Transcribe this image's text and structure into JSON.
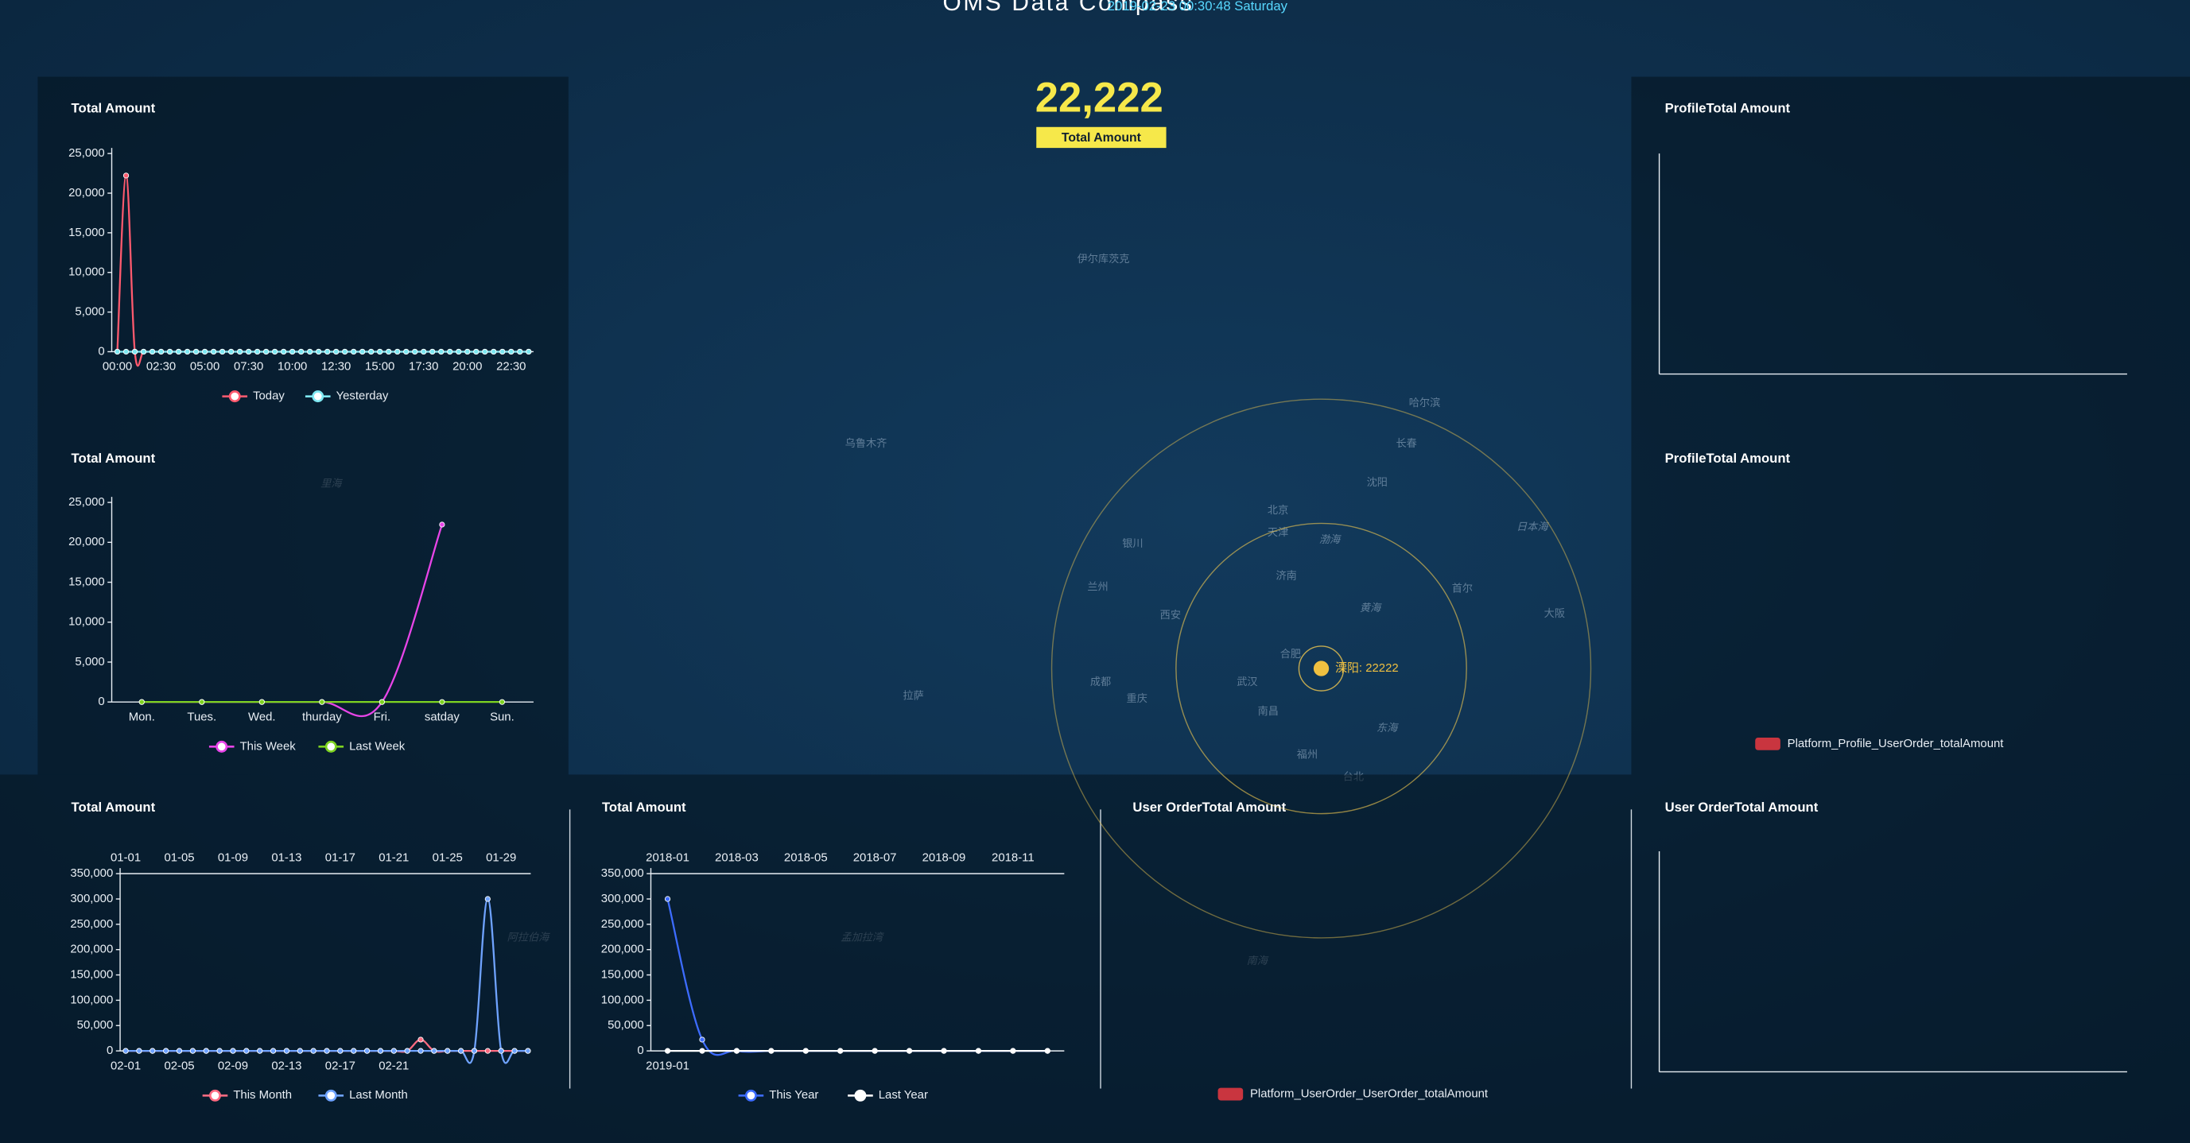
{
  "header": {
    "title": "OMS Data Compass",
    "datetime": "2019-02-23 00:30:48 Saturday"
  },
  "kpi": {
    "value": "22,222",
    "label": "Total Amount"
  },
  "map": {
    "point_label": "溧阳: 22222",
    "labels": [
      "北京",
      "渤海",
      "黄海",
      "东海",
      "日本海",
      "南海",
      "孟加拉湾",
      "阿拉伯海",
      "里海",
      "乌鲁木齐",
      "伊尔库茨克",
      "哈尔滨",
      "长春",
      "沈阳",
      "天津",
      "济南",
      "西安",
      "武汉",
      "成都",
      "重庆",
      "南昌",
      "福州",
      "台北",
      "首尔",
      "大阪",
      "拉萨",
      "兰州",
      "银川",
      "合肥"
    ]
  },
  "chart_data": [
    {
      "type": "line",
      "title": "Total Amount",
      "categories": [
        "00:00",
        null,
        null,
        null,
        null,
        "02:30",
        null,
        null,
        null,
        null,
        "05:00",
        null,
        null,
        null,
        null,
        "07:30",
        null,
        null,
        null,
        null,
        "10:00",
        null,
        null,
        null,
        null,
        "12:30",
        null,
        null,
        null,
        null,
        "15:00",
        null,
        null,
        null,
        null,
        "17:30",
        null,
        null,
        null,
        null,
        "20:00",
        null,
        null,
        null,
        null,
        "22:30",
        null,
        null
      ],
      "series": [
        {
          "name": "Today",
          "color": "#ff5a6e",
          "values": [
            0,
            22222,
            0,
            0,
            0,
            0,
            0,
            0,
            0,
            0,
            0,
            0,
            0,
            0,
            0,
            0,
            0,
            0,
            0,
            0,
            0,
            0,
            0,
            0,
            0,
            0,
            0,
            0,
            0,
            0,
            0,
            0,
            0,
            0,
            0,
            0,
            0,
            0,
            0,
            0,
            0,
            0,
            0,
            0,
            0,
            0,
            0,
            0
          ]
        },
        {
          "name": "Yesterday",
          "color": "#7ee8f2",
          "values": [
            0,
            0,
            0,
            0,
            0,
            0,
            0,
            0,
            0,
            0,
            0,
            0,
            0,
            0,
            0,
            0,
            0,
            0,
            0,
            0,
            0,
            0,
            0,
            0,
            0,
            0,
            0,
            0,
            0,
            0,
            0,
            0,
            0,
            0,
            0,
            0,
            0,
            0,
            0,
            0,
            0,
            0,
            0,
            0,
            0,
            0,
            0,
            0
          ]
        }
      ],
      "ylim": [
        0,
        25000
      ],
      "yticks": [
        0,
        {
          "value": 5000,
          "label": "5,000"
        },
        {
          "value": 10000,
          "label": "10,000"
        },
        {
          "value": 15000,
          "label": "15,000"
        },
        {
          "value": 20000,
          "label": "20,000"
        },
        {
          "value": 25000,
          "label": "25,000"
        }
      ]
    },
    {
      "type": "line",
      "title": "Total Amount",
      "categories": [
        "Mon.",
        "Tues.",
        "Wed.",
        "thurday",
        "Fri.",
        "satday",
        "Sun."
      ],
      "series": [
        {
          "name": "This Week",
          "color": "#e845e8",
          "values": [
            0,
            0,
            0,
            0,
            0,
            22222,
            null
          ]
        },
        {
          "name": "Last Week",
          "color": "#7ed321",
          "values": [
            0,
            0,
            0,
            0,
            0,
            0,
            0
          ]
        }
      ],
      "ylim": [
        0,
        25000
      ],
      "yticks": [
        0,
        {
          "value": 5000,
          "label": "5,000"
        },
        {
          "value": 10000,
          "label": "10,000"
        },
        {
          "value": 15000,
          "label": "15,000"
        },
        {
          "value": 20000,
          "label": "20,000"
        },
        {
          "value": 25000,
          "label": "25,000"
        }
      ]
    },
    {
      "type": "line",
      "title": "Total Amount",
      "categories": [
        "02-01",
        null,
        null,
        null,
        "02-05",
        null,
        null,
        null,
        "02-09",
        null,
        null,
        null,
        "02-13",
        null,
        null,
        null,
        "02-17",
        null,
        null,
        null,
        "02-21",
        null,
        null,
        null,
        null,
        null,
        null,
        null,
        null,
        null,
        null
      ],
      "x2_categories": [
        "01-01",
        null,
        null,
        null,
        "01-05",
        null,
        null,
        null,
        "01-09",
        null,
        null,
        null,
        "01-13",
        null,
        null,
        null,
        "01-17",
        null,
        null,
        null,
        "01-21",
        null,
        null,
        null,
        "01-25",
        null,
        null,
        null,
        "01-29",
        null,
        null
      ],
      "series": [
        {
          "name": "This Month",
          "color": "#ff6b81",
          "values": [
            0,
            0,
            0,
            0,
            0,
            0,
            0,
            0,
            0,
            0,
            0,
            0,
            0,
            0,
            0,
            0,
            0,
            0,
            0,
            0,
            0,
            0,
            22222,
            0,
            0,
            0,
            0,
            0,
            0,
            0,
            0
          ]
        },
        {
          "name": "Last Month",
          "color": "#6fa3ff",
          "x_axis": "top",
          "values": [
            0,
            0,
            0,
            0,
            0,
            0,
            0,
            0,
            0,
            0,
            0,
            0,
            0,
            0,
            0,
            0,
            0,
            0,
            0,
            0,
            0,
            0,
            0,
            0,
            0,
            0,
            0,
            300000,
            0,
            0,
            0
          ]
        }
      ],
      "ylim": [
        0,
        350000
      ],
      "yticks": [
        0,
        {
          "value": 50000,
          "label": "50,000"
        },
        {
          "value": 100000,
          "label": "100,000"
        },
        {
          "value": 150000,
          "label": "150,000"
        },
        {
          "value": 200000,
          "label": "200,000"
        },
        {
          "value": 250000,
          "label": "250,000"
        },
        {
          "value": 300000,
          "label": "300,000"
        },
        {
          "value": 350000,
          "label": "350,000"
        }
      ]
    },
    {
      "type": "line",
      "title": "Total Amount",
      "categories": [
        "2019-01",
        null,
        null,
        null,
        null,
        null,
        null,
        null,
        null,
        null,
        null,
        null
      ],
      "x2_categories": [
        "2018-01",
        null,
        "2018-03",
        null,
        "2018-05",
        null,
        "2018-07",
        null,
        "2018-09",
        null,
        "2018-11",
        null
      ],
      "series": [
        {
          "name": "This Year",
          "color": "#3d6cff",
          "values": [
            300000,
            22222,
            0,
            0,
            0,
            0,
            0,
            0,
            0,
            0,
            0,
            0
          ]
        },
        {
          "name": "Last Year",
          "color": "#ffffff",
          "x_axis": "top",
          "values": [
            0,
            0,
            0,
            0,
            0,
            0,
            0,
            0,
            0,
            0,
            0,
            0
          ]
        }
      ],
      "ylim": [
        0,
        350000
      ],
      "yticks": [
        0,
        {
          "value": 50000,
          "label": "50,000"
        },
        {
          "value": 100000,
          "label": "100,000"
        },
        {
          "value": 150000,
          "label": "150,000"
        },
        {
          "value": 200000,
          "label": "200,000"
        },
        {
          "value": 250000,
          "label": "250,000"
        },
        {
          "value": 300000,
          "label": "300,000"
        },
        {
          "value": 350000,
          "label": "350,000"
        }
      ]
    },
    {
      "type": "bar",
      "title": "ProfileTotal Amount"
    },
    {
      "type": "bar",
      "title": "ProfileTotal Amount",
      "series": [
        {
          "name": "Platform_Profile_UserOrder_totalAmount",
          "color": "#c9353f",
          "values": []
        }
      ]
    },
    {
      "type": "bar",
      "title": "User OrderTotal Amount",
      "series": [
        {
          "name": "Platform_UserOrder_UserOrder_totalAmount",
          "color": "#c9353f",
          "values": []
        }
      ]
    },
    {
      "type": "bar",
      "title": "User OrderTotal Amount"
    }
  ]
}
